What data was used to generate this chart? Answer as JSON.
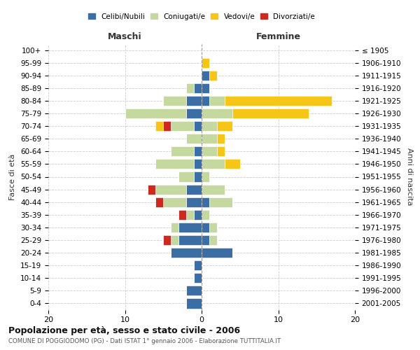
{
  "age_groups": [
    "0-4",
    "5-9",
    "10-14",
    "15-19",
    "20-24",
    "25-29",
    "30-34",
    "35-39",
    "40-44",
    "45-49",
    "50-54",
    "55-59",
    "60-64",
    "65-69",
    "70-74",
    "75-79",
    "80-84",
    "85-89",
    "90-94",
    "95-99",
    "100+"
  ],
  "birth_years": [
    "2001-2005",
    "1996-2000",
    "1991-1995",
    "1986-1990",
    "1981-1985",
    "1976-1980",
    "1971-1975",
    "1966-1970",
    "1961-1965",
    "1956-1960",
    "1951-1955",
    "1946-1950",
    "1941-1945",
    "1936-1940",
    "1931-1935",
    "1926-1930",
    "1921-1925",
    "1916-1920",
    "1911-1915",
    "1906-1910",
    "≤ 1905"
  ],
  "maschi": {
    "celibi": [
      2,
      2,
      1,
      1,
      4,
      3,
      3,
      1,
      2,
      2,
      1,
      1,
      1,
      0,
      1,
      2,
      2,
      1,
      0,
      0,
      0
    ],
    "coniugati": [
      0,
      0,
      0,
      0,
      0,
      1,
      1,
      1,
      3,
      4,
      2,
      5,
      3,
      2,
      3,
      8,
      3,
      1,
      0,
      0,
      0
    ],
    "vedovi": [
      0,
      0,
      0,
      0,
      0,
      0,
      0,
      0,
      0,
      0,
      0,
      0,
      0,
      0,
      1,
      0,
      0,
      0,
      0,
      0,
      0
    ],
    "divorziati": [
      0,
      0,
      0,
      0,
      0,
      1,
      0,
      1,
      1,
      1,
      0,
      0,
      0,
      0,
      1,
      0,
      0,
      0,
      0,
      0,
      0
    ]
  },
  "femmine": {
    "nubili": [
      0,
      0,
      0,
      0,
      4,
      1,
      1,
      0,
      1,
      0,
      0,
      0,
      0,
      0,
      0,
      0,
      1,
      1,
      1,
      0,
      0
    ],
    "coniugate": [
      0,
      0,
      0,
      0,
      0,
      1,
      1,
      1,
      3,
      3,
      1,
      3,
      2,
      2,
      2,
      4,
      2,
      0,
      0,
      0,
      0
    ],
    "vedove": [
      0,
      0,
      0,
      0,
      0,
      0,
      0,
      0,
      0,
      0,
      0,
      2,
      1,
      1,
      2,
      10,
      14,
      0,
      1,
      1,
      0
    ],
    "divorziate": [
      0,
      0,
      0,
      0,
      0,
      0,
      0,
      0,
      0,
      0,
      0,
      0,
      0,
      0,
      0,
      0,
      0,
      0,
      0,
      0,
      0
    ]
  },
  "color_celibi": "#3a6ea5",
  "color_coniugati": "#c5d8a0",
  "color_vedovi": "#f5c518",
  "color_divorziati": "#cc2a1e",
  "xlim": [
    -20,
    20
  ],
  "xticks": [
    -20,
    -10,
    0,
    10,
    20
  ],
  "xticklabels": [
    "20",
    "10",
    "0",
    "10",
    "20"
  ],
  "title": "Popolazione per età, sesso e stato civile - 2006",
  "subtitle": "COMUNE DI POGGIODOMO (PG) - Dati ISTAT 1° gennaio 2006 - Elaborazione TUTTITALIA.IT",
  "ylabel_left": "Fasce di età",
  "ylabel_right": "Anni di nascita",
  "label_maschi": "Maschi",
  "label_femmine": "Femmine",
  "legend_celibi": "Celibi/Nubili",
  "legend_coniugati": "Coniugati/e",
  "legend_vedovi": "Vedovi/e",
  "legend_divorziati": "Divorziati/e",
  "bg_color": "#ffffff",
  "grid_color": "#cccccc"
}
